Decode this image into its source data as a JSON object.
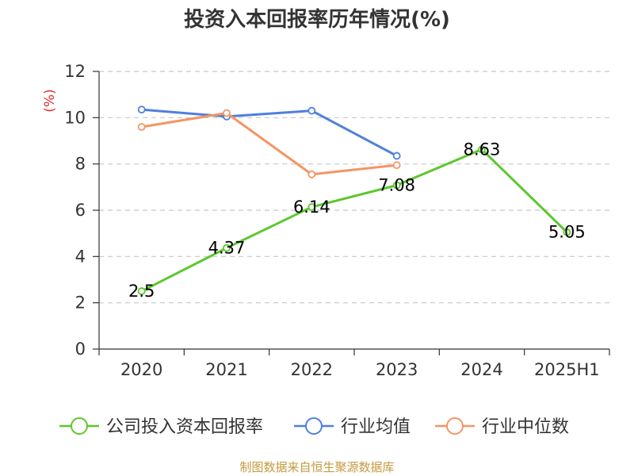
{
  "chart_data": {
    "type": "line",
    "title": "投资入本回报率历年情况(%)",
    "ylabel": "(%)",
    "xlabel": "",
    "categories": [
      "2020",
      "2021",
      "2022",
      "2023",
      "2024",
      "2025H1"
    ],
    "ylim": [
      0,
      12
    ],
    "yticks": [
      0,
      2,
      4,
      6,
      8,
      10,
      12
    ],
    "grid": true,
    "legend_position": "bottom",
    "series": [
      {
        "name": "公司投入资本回报率",
        "color": "#5cc72f",
        "values": [
          2.5,
          4.37,
          6.14,
          7.08,
          8.63,
          5.05
        ],
        "labels": [
          "2.5",
          "4.37",
          "6.14",
          "7.08",
          "8.63",
          "5.05"
        ]
      },
      {
        "name": "行业均值",
        "color": "#4e7fde",
        "values": [
          10.35,
          10.05,
          10.3,
          8.35,
          null,
          null
        ]
      },
      {
        "name": "行业中位数",
        "color": "#f59563",
        "values": [
          9.6,
          10.2,
          7.55,
          7.95,
          null,
          null
        ]
      }
    ]
  },
  "source": "制图数据来自恒生聚源数据库"
}
